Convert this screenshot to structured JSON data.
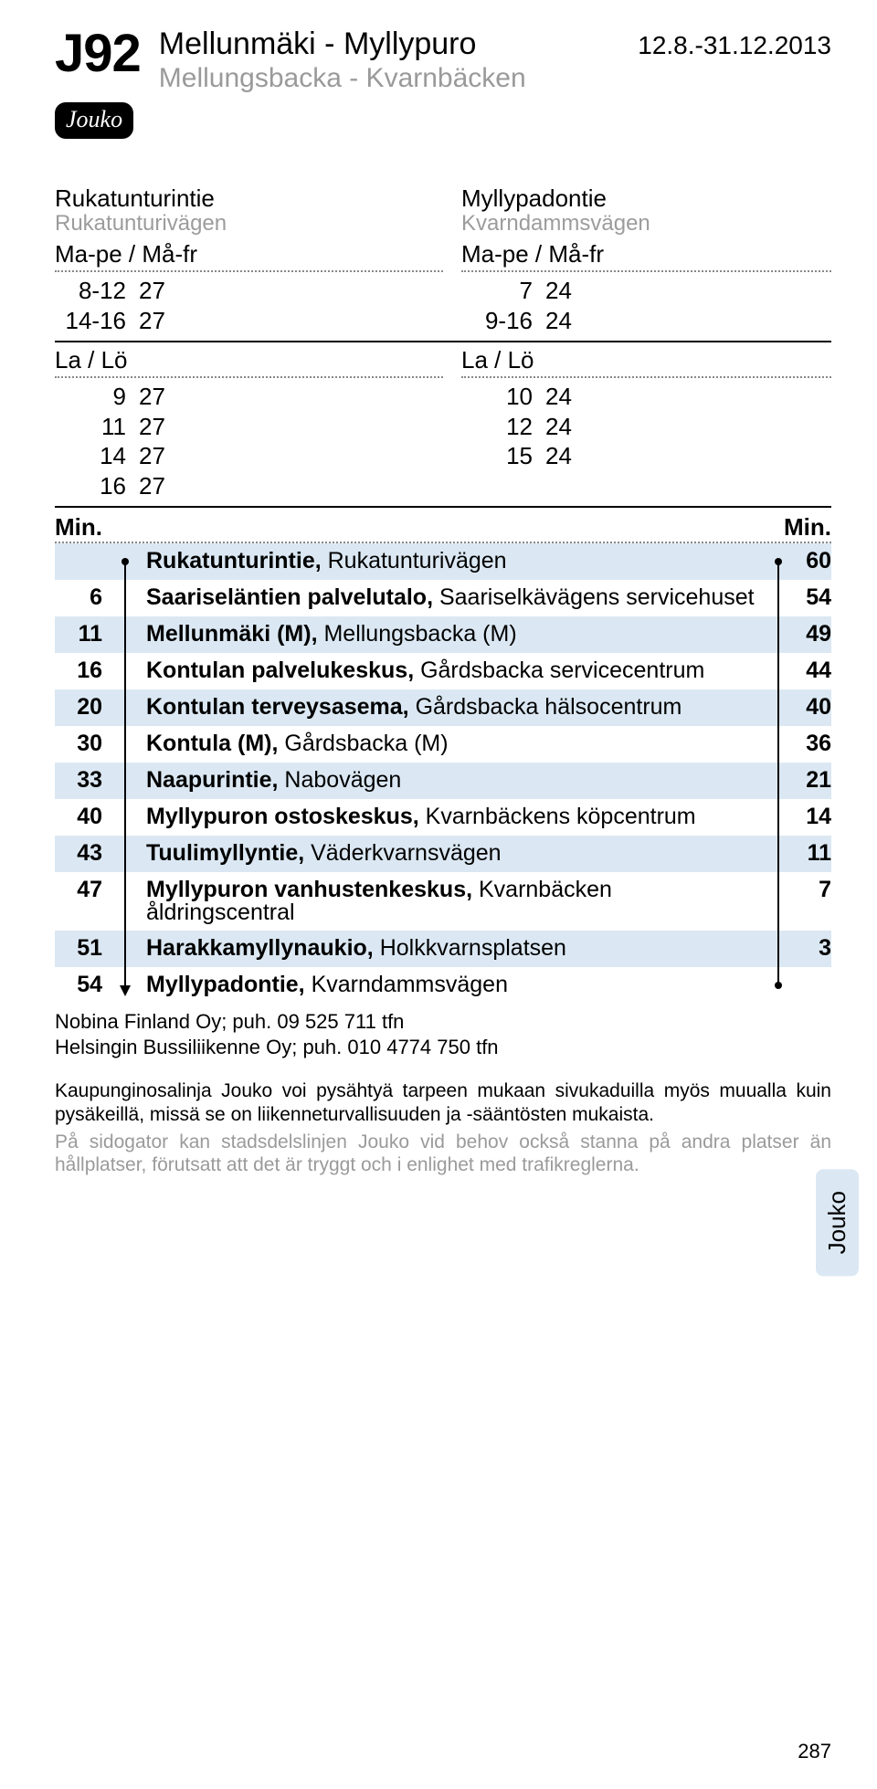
{
  "header": {
    "route_code": "J92",
    "title_fi": "Mellunmäki - Myllypuro",
    "title_sv": "Mellungsbacka - Kvarnbäcken",
    "date_range": "12.8.-31.12.2013",
    "badge": "Jouko"
  },
  "colors": {
    "shaded_row": "#dbe8f3",
    "muted_text": "#9a9a9a"
  },
  "schedule": {
    "left": {
      "stop_fi": "Rukatunturintie",
      "stop_sv": "Rukatunturivägen",
      "blocks": [
        {
          "label": "Ma-pe / Må-fr",
          "rows": [
            {
              "hr": "8-12",
              "mn": "27"
            },
            {
              "hr": "14-16",
              "mn": "27"
            }
          ]
        },
        {
          "label": "La / Lö",
          "rows": [
            {
              "hr": "9",
              "mn": "27"
            },
            {
              "hr": "11",
              "mn": "27"
            },
            {
              "hr": "14",
              "mn": "27"
            },
            {
              "hr": "16",
              "mn": "27"
            }
          ]
        }
      ]
    },
    "right": {
      "stop_fi": "Myllypadontie",
      "stop_sv": "Kvarndammsvägen",
      "blocks": [
        {
          "label": "Ma-pe / Må-fr",
          "rows": [
            {
              "hr": "7",
              "mn": "24"
            },
            {
              "hr": "9-16",
              "mn": "24"
            }
          ]
        },
        {
          "label": "La / Lö",
          "rows": [
            {
              "hr": "10",
              "mn": "24"
            },
            {
              "hr": "12",
              "mn": "24"
            },
            {
              "hr": "15",
              "mn": "24"
            }
          ]
        }
      ]
    }
  },
  "stops": {
    "min_label_left": "Min.",
    "min_label_right": "Min.",
    "rows": [
      {
        "left": "",
        "name_bold": "Rukatunturintie,",
        "name_rest": " Rukatunturivägen",
        "right": "60",
        "shaded": true,
        "first": true
      },
      {
        "left": "6",
        "name_bold": "Saariseläntien palvelutalo,",
        "name_rest": " Saariselkävägens servicehuset",
        "right": "54",
        "shaded": false
      },
      {
        "left": "11",
        "name_bold": "Mellunmäki (M),",
        "name_rest": " Mellungsbacka (M)",
        "right": "49",
        "shaded": true
      },
      {
        "left": "16",
        "name_bold": "Kontulan palvelukeskus,",
        "name_rest": " Gårdsbacka servicecentrum",
        "right": "44",
        "shaded": false
      },
      {
        "left": "20",
        "name_bold": "Kontulan terveysasema,",
        "name_rest": " Gårdsbacka hälsocentrum",
        "right": "40",
        "shaded": true
      },
      {
        "left": "30",
        "name_bold": "Kontula (M),",
        "name_rest": " Gårdsbacka (M)",
        "right": "36",
        "shaded": false
      },
      {
        "left": "33",
        "name_bold": "Naapurintie,",
        "name_rest": " Nabovägen",
        "right": "21",
        "shaded": true
      },
      {
        "left": "40",
        "name_bold": "Myllypuron ostoskeskus,",
        "name_rest": " Kvarnbäckens köpcentrum",
        "right": "14",
        "shaded": false
      },
      {
        "left": "43",
        "name_bold": "Tuulimyllyntie,",
        "name_rest": " Väderkvarnsvägen",
        "right": "11",
        "shaded": true
      },
      {
        "left": "47",
        "name_bold": "Myllypuron vanhustenkeskus,",
        "name_rest": " Kvarnbäcken åldringscentral",
        "right": "7",
        "shaded": false
      },
      {
        "left": "51",
        "name_bold": "Harakkamyllynaukio,",
        "name_rest": " Holkkvarnsplatsen",
        "right": "3",
        "shaded": true
      },
      {
        "left": "54",
        "name_bold": "Myllypadontie,",
        "name_rest": " Kvarndammsvägen",
        "right": "",
        "shaded": false,
        "last": true
      }
    ]
  },
  "operators": {
    "line1": "Nobina Finland Oy; puh. 09 525 711 tfn",
    "line2": "Helsingin Bussiliikenne Oy; puh. 010 4774 750 tfn"
  },
  "info": {
    "fi": "Kaupunginosalinja Jouko voi pysähtyä tarpeen mukaan sivukaduilla myös muualla kuin pysäkeillä, missä se on liikenneturvallisuuden ja -sääntösten mukaista.",
    "sv": "På sidogator kan stadsdelslinjen Jouko vid behov också stanna på andra platser än hållplatser, förutsatt att det är tryggt och i enlighet med trafikreglerna."
  },
  "side_tab": "Jouko",
  "page_number": "287"
}
